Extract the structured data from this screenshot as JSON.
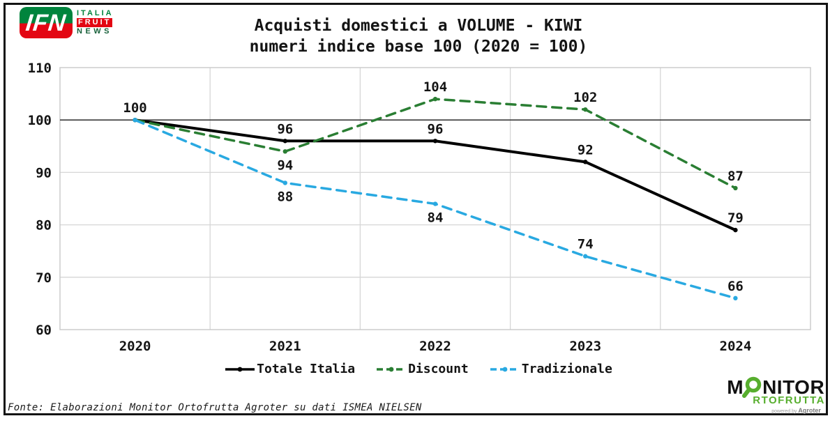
{
  "ifn_logo": {
    "acronym": "IFN",
    "word1": "ITALIA",
    "word2": "FRUIT",
    "word3": "NEWS"
  },
  "title": {
    "line1": "Acquisti domestici a VOLUME - KIWI",
    "line2": "numeri indice base 100 (2020 = 100)"
  },
  "chart_data": {
    "type": "line",
    "title": "Acquisti domestici a VOLUME - KIWI",
    "subtitle": "numeri indice base 100 (2020 = 100)",
    "categories": [
      "2020",
      "2021",
      "2022",
      "2023",
      "2024"
    ],
    "series": [
      {
        "name": "Totale Italia",
        "color": "#000000",
        "style": "solid",
        "values": [
          100,
          96,
          96,
          92,
          79
        ],
        "label_pos": [
          "above",
          "above",
          "above",
          "above",
          "above"
        ]
      },
      {
        "name": "Discount",
        "color": "#2a7e33",
        "style": "dashed",
        "values": [
          100,
          94,
          104,
          102,
          87
        ],
        "label_pos": [
          null,
          "below",
          "above",
          "above",
          "above"
        ]
      },
      {
        "name": "Tradizionale",
        "color": "#29a9e1",
        "style": "dashed",
        "values": [
          100,
          88,
          84,
          74,
          66
        ],
        "label_pos": [
          null,
          "below",
          "below",
          "above",
          "above"
        ]
      }
    ],
    "ylim": [
      60,
      110
    ],
    "ytick_step": 10,
    "ref_line": 100,
    "grid": true,
    "legend_position": "bottom"
  },
  "source_note": "Fonte: Elaborazioni Monitor Ortofrutta Agroter su dati ISMEA NIELSEN",
  "monitor_logo": {
    "line1_prefix": "M",
    "line1_suffix": "NITOR",
    "line2": "RTOFRUTTA",
    "powered_by": "powered by ",
    "brand": "Agroter"
  },
  "colors": {
    "discount_green": "#2a7e33",
    "tradizionale_blue": "#29a9e1",
    "ifn_green": "#00843d",
    "ifn_red": "#e30613",
    "monitor_green": "#57ae2e",
    "grid_gray": "#d6d6d6",
    "ref_line_gray": "#3a3a3a",
    "text_dark": "#141414"
  }
}
